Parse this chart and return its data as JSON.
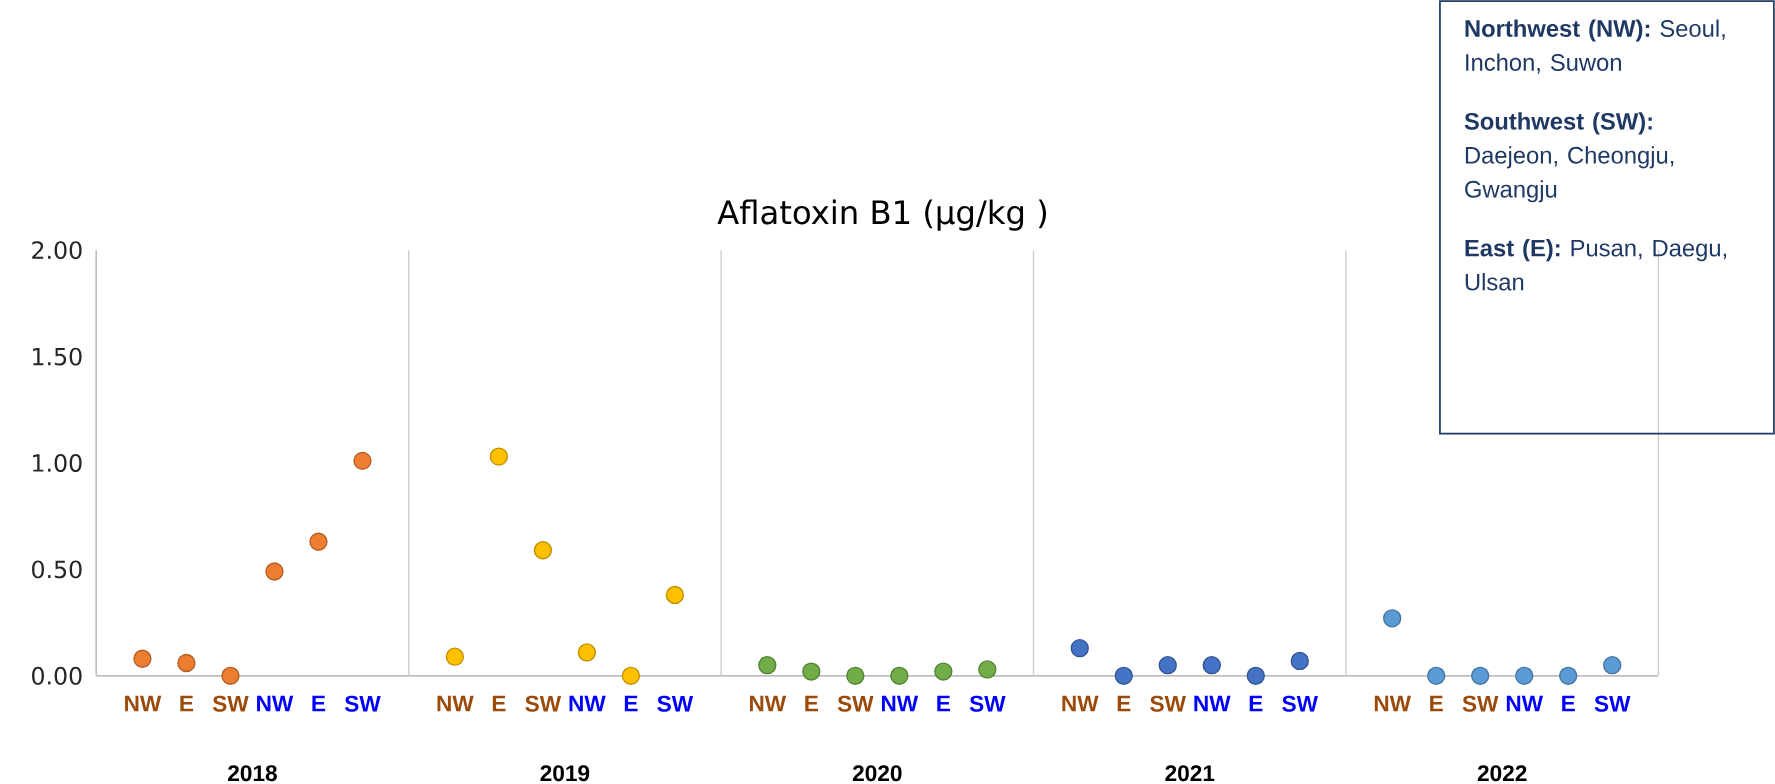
{
  "chart_data": {
    "type": "scatter",
    "title": "Aflatoxin B1 (µg/kg )",
    "categories": [
      "NW",
      "E",
      "SW",
      "NW",
      "E",
      "SW",
      "NW",
      "E",
      "SW",
      "NW",
      "E",
      "SW",
      "NW",
      "E",
      "SW",
      "NW",
      "E",
      "SW",
      "NW",
      "E",
      "SW",
      "NW",
      "E",
      "SW",
      "NW",
      "E",
      "SW",
      "NW",
      "E",
      "SW"
    ],
    "series": [
      {
        "color": "#ed7d31",
        "values": [
          0.08,
          0.06,
          0.0,
          0.49,
          0.63,
          1.01,
          null,
          null,
          null,
          null,
          null,
          null,
          null,
          null,
          null,
          null,
          null,
          null,
          null,
          null,
          null,
          null,
          null,
          null,
          null,
          null,
          null,
          null,
          null,
          null
        ]
      },
      {
        "color": "#ffc000",
        "values": [
          null,
          null,
          null,
          null,
          null,
          null,
          0.09,
          1.03,
          0.59,
          0.11,
          0.0,
          0.38,
          null,
          null,
          null,
          null,
          null,
          null,
          null,
          null,
          null,
          null,
          null,
          null,
          null,
          null,
          null,
          null,
          null,
          null
        ]
      },
      {
        "color": "#70ad47",
        "values": [
          null,
          null,
          null,
          null,
          null,
          null,
          null,
          null,
          null,
          null,
          null,
          null,
          0.05,
          0.02,
          0.0,
          0.0,
          0.02,
          0.03,
          null,
          null,
          null,
          null,
          null,
          null,
          null,
          null,
          null,
          null,
          null,
          null
        ]
      },
      {
        "color": "#4472c4",
        "values": [
          null,
          null,
          null,
          null,
          null,
          null,
          null,
          null,
          null,
          null,
          null,
          null,
          null,
          null,
          null,
          null,
          null,
          null,
          0.13,
          0.0,
          0.05,
          0.05,
          0.0,
          0.07,
          null,
          null,
          null,
          null,
          null,
          null
        ]
      },
      {
        "color": "#5b9bd5",
        "values": [
          null,
          null,
          null,
          null,
          null,
          null,
          null,
          null,
          null,
          null,
          null,
          null,
          null,
          null,
          null,
          null,
          null,
          null,
          null,
          null,
          null,
          null,
          null,
          null,
          0.27,
          0.0,
          0.0,
          0.0,
          0.0,
          0.05
        ]
      }
    ],
    "ylim": [
      0,
      2
    ],
    "yticks": [
      {
        "value": 0,
        "label": "0.00"
      },
      {
        "value": 0.5,
        "label": "0.50"
      },
      {
        "value": 1,
        "label": "1.00"
      },
      {
        "value": 1.5,
        "label": "1.50"
      },
      {
        "value": 2,
        "label": "2.00"
      }
    ],
    "grid": false,
    "marker": "circle",
    "annotations": [
      "2018",
      "2019",
      "2020",
      "2021",
      "2022",
      "**Northwest (NW):** Seoul, Inchon, Suwon",
      "**Southwest (SW):** Daejeon, Cheongju, Gwangju",
      "**East (E):** Pusan, Daegu, Ulsan"
    ]
  }
}
